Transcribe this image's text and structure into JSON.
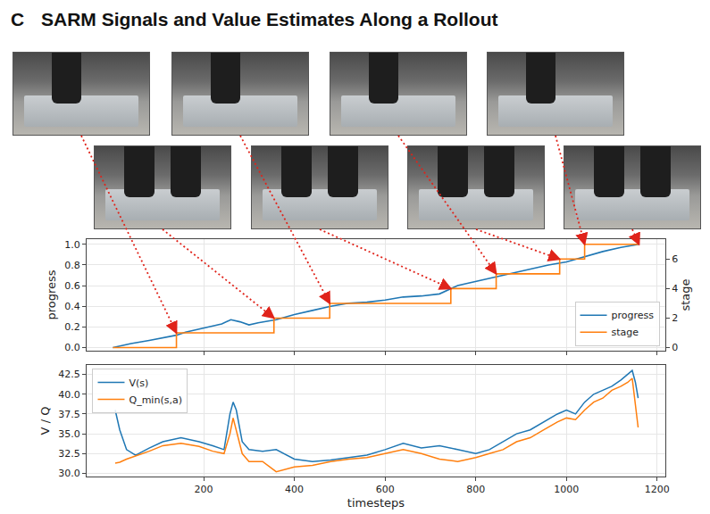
{
  "section": "C",
  "heading": "SARM Signals and Value Estimates Along a Rollout",
  "chart_data": [
    {
      "type": "line",
      "xlim": [
        -58,
        1218
      ],
      "xticks": [
        200,
        400,
        600,
        800,
        1000,
        1200
      ],
      "ylim": [
        -0.03,
        1.05
      ],
      "yticks": [
        {
          "value": 0,
          "label": "0.0"
        },
        {
          "value": 0.2,
          "label": "0.2"
        },
        {
          "value": 0.4,
          "label": "0.4"
        },
        {
          "value": 0.6,
          "label": "0.6"
        },
        {
          "value": 0.8,
          "label": "0.8"
        },
        {
          "value": 1,
          "label": "1.0"
        }
      ],
      "ylabel": "progress",
      "y2label": "stage",
      "y2lim": [
        -0.21,
        7.35
      ],
      "y2ticks": [
        0,
        2,
        4,
        6
      ],
      "grid": true,
      "legend": "lower right",
      "tick_labels": "y",
      "series": [
        {
          "name": "progress",
          "color": "#1f77b4",
          "x": [
            0,
            40,
            80,
            120,
            140,
            160,
            200,
            240,
            260,
            280,
            300,
            320,
            360,
            400,
            440,
            480,
            520,
            560,
            600,
            640,
            680,
            720,
            760,
            800,
            840,
            880,
            920,
            960,
            1000,
            1040,
            1080,
            1120,
            1160
          ],
          "values": [
            0.0,
            0.04,
            0.07,
            0.1,
            0.12,
            0.15,
            0.19,
            0.23,
            0.27,
            0.25,
            0.22,
            0.24,
            0.27,
            0.32,
            0.36,
            0.4,
            0.43,
            0.44,
            0.46,
            0.49,
            0.5,
            0.52,
            0.6,
            0.64,
            0.68,
            0.72,
            0.76,
            0.8,
            0.83,
            0.88,
            0.93,
            0.97,
            1.0
          ]
        },
        {
          "name": "stage",
          "color": "#ff7f0e",
          "axis": "y2",
          "line_style": "steps",
          "x": [
            0,
            140,
            355,
            478,
            745,
            845,
            985,
            1040,
            1160
          ],
          "values": [
            0,
            1,
            2,
            3,
            4,
            5,
            6,
            7,
            7
          ]
        }
      ]
    },
    {
      "type": "line",
      "xlabel": "timesteps",
      "ylabel": "V / Q",
      "xlim": [
        -58,
        1218
      ],
      "xticks": [
        200,
        400,
        600,
        800,
        1000,
        1200
      ],
      "ylim": [
        29.6,
        43.7
      ],
      "yticks": [
        {
          "value": 30,
          "label": "30.0"
        },
        {
          "value": 32.5,
          "label": "32.5"
        },
        {
          "value": 35,
          "label": "35.0"
        },
        {
          "value": 37.5,
          "label": "37.5"
        },
        {
          "value": 40,
          "label": "40.0"
        },
        {
          "value": 42.5,
          "label": "42.5"
        }
      ],
      "grid": true,
      "legend": "upper left",
      "x": [
        5,
        15,
        30,
        50,
        80,
        110,
        150,
        190,
        220,
        245,
        258,
        265,
        272,
        285,
        300,
        330,
        360,
        400,
        440,
        480,
        520,
        560,
        600,
        640,
        680,
        720,
        760,
        800,
        830,
        860,
        890,
        920,
        950,
        980,
        1000,
        1020,
        1040,
        1060,
        1080,
        1100,
        1120,
        1135,
        1145,
        1152,
        1158
      ],
      "series": [
        {
          "name": "V(s)",
          "color": "#1f77b4",
          "values": [
            38.0,
            35.5,
            33.0,
            32.3,
            33.2,
            34.0,
            34.5,
            34.0,
            33.5,
            33.0,
            37.5,
            39.0,
            38.0,
            34.0,
            33.0,
            32.8,
            33.0,
            31.8,
            31.5,
            31.7,
            32.0,
            32.3,
            33.0,
            33.8,
            33.2,
            33.5,
            33.0,
            32.5,
            33.0,
            34.0,
            35.0,
            35.5,
            36.5,
            37.5,
            38.0,
            37.5,
            39.0,
            40.0,
            40.5,
            41.0,
            41.8,
            42.5,
            43.0,
            41.5,
            39.5
          ]
        },
        {
          "name": "Q_min(s,a)",
          "color": "#ff7f0e",
          "values": [
            31.3,
            31.4,
            31.8,
            32.2,
            32.8,
            33.5,
            33.8,
            33.4,
            32.8,
            32.5,
            35.0,
            37.0,
            35.5,
            32.5,
            31.5,
            31.5,
            30.2,
            30.8,
            31.0,
            31.5,
            31.8,
            32.0,
            32.5,
            33.0,
            32.5,
            31.8,
            31.5,
            32.0,
            32.5,
            33.0,
            34.0,
            34.5,
            35.5,
            36.5,
            37.0,
            36.8,
            38.0,
            39.0,
            39.5,
            40.5,
            41.0,
            41.5,
            42.0,
            38.5,
            35.8
          ]
        }
      ]
    }
  ]
}
